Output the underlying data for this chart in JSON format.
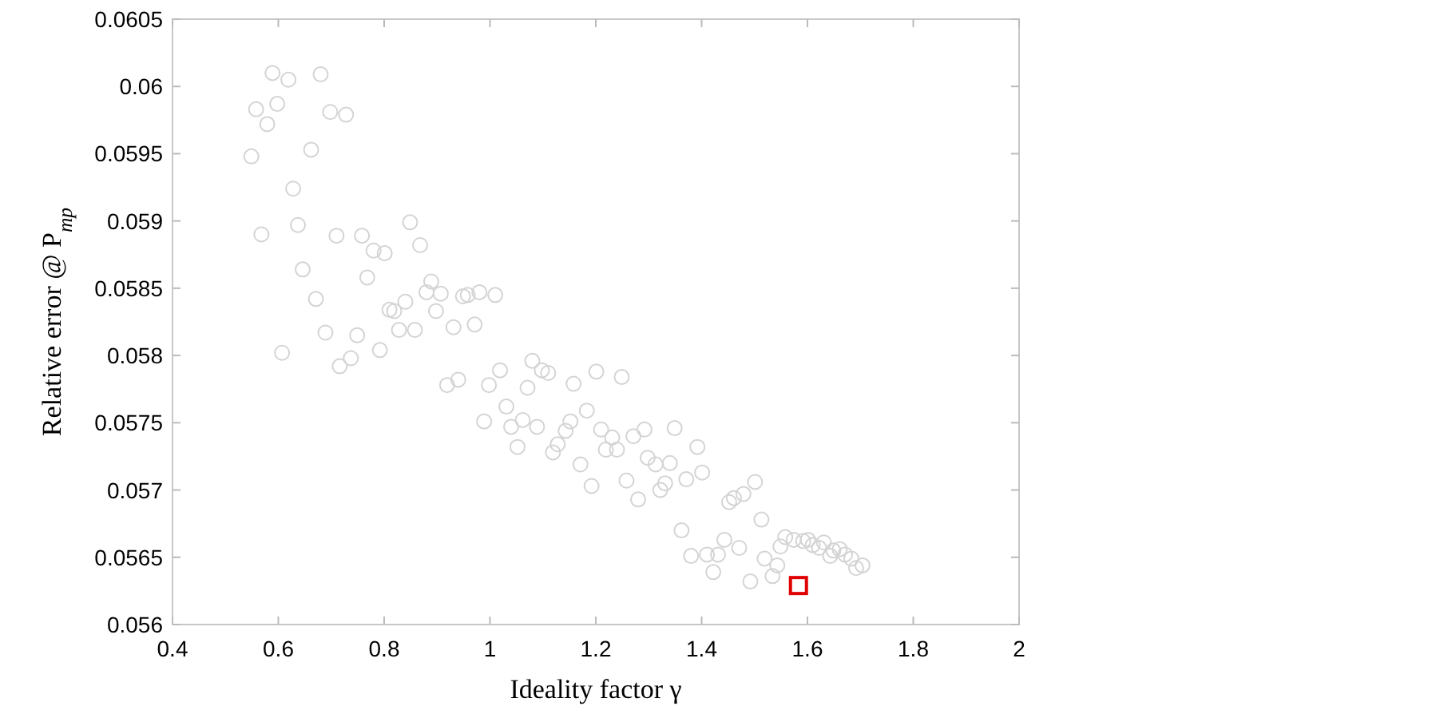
{
  "chart_data": {
    "type": "scatter",
    "xlabel": "Ideality factor γ",
    "ylabel": "Relative error @ P$_{mp}$",
    "xlim": [
      0.4,
      2
    ],
    "xticks": [
      0.4,
      0.6,
      0.8,
      1,
      1.2,
      1.4,
      1.6,
      1.8,
      2
    ],
    "ylim": [
      0.056,
      0.0605
    ],
    "yticks": [
      0.056,
      0.0565,
      0.057,
      0.0575,
      0.058,
      0.0585,
      0.059,
      0.0595,
      0.06,
      0.0605
    ],
    "grid": false,
    "series": [
      {
        "color": "#d4d4d4",
        "marker": "circle",
        "x": [
          0.549,
          0.558,
          0.579,
          0.589,
          0.598,
          0.619,
          0.68,
          0.698,
          0.728,
          0.662,
          0.628,
          0.568,
          0.637,
          0.71,
          0.758,
          0.78,
          0.801,
          0.849,
          0.868,
          0.646,
          0.768,
          0.671,
          0.889,
          0.88,
          0.907,
          0.949,
          0.958,
          0.98,
          1.01,
          0.81,
          0.819,
          0.84,
          0.898,
          0.689,
          0.749,
          0.828,
          0.858,
          0.931,
          0.971,
          0.607,
          0.792,
          0.737,
          0.716,
          1.08,
          1.019,
          1.098,
          1.11,
          0.919,
          0.94,
          0.998,
          1.071,
          1.158,
          1.201,
          1.249,
          1.031,
          1.183,
          0.989,
          1.04,
          1.062,
          1.089,
          1.152,
          1.143,
          1.128,
          1.119,
          1.052,
          1.21,
          1.231,
          1.271,
          1.292,
          1.349,
          1.219,
          1.24,
          1.298,
          1.313,
          1.34,
          1.392,
          1.171,
          1.192,
          1.258,
          1.28,
          1.322,
          1.331,
          1.371,
          1.401,
          1.362,
          1.38,
          1.41,
          1.431,
          1.422,
          1.443,
          1.471,
          1.492,
          1.452,
          1.461,
          1.479,
          1.501,
          1.513,
          1.519,
          1.543,
          1.534,
          1.549,
          1.558,
          1.574,
          1.592,
          1.601,
          1.61,
          1.622,
          1.631,
          1.643,
          1.649,
          1.661,
          1.671,
          1.683,
          1.692,
          1.704
        ],
        "values": [
          0.05948,
          0.05983,
          0.05972,
          0.0601,
          0.05987,
          0.06005,
          0.06009,
          0.05981,
          0.05979,
          0.05953,
          0.05924,
          0.0589,
          0.05897,
          0.05889,
          0.05889,
          0.05878,
          0.05876,
          0.05899,
          0.05882,
          0.05864,
          0.05858,
          0.05842,
          0.05855,
          0.05847,
          0.05846,
          0.05844,
          0.05845,
          0.05847,
          0.05845,
          0.05834,
          0.05833,
          0.0584,
          0.05833,
          0.05817,
          0.05815,
          0.05819,
          0.05819,
          0.05821,
          0.05823,
          0.05802,
          0.05804,
          0.05798,
          0.05792,
          0.05796,
          0.05789,
          0.05789,
          0.05787,
          0.05778,
          0.05782,
          0.05778,
          0.05776,
          0.05779,
          0.05788,
          0.05784,
          0.05762,
          0.05759,
          0.05751,
          0.05747,
          0.05752,
          0.05747,
          0.05751,
          0.05744,
          0.05734,
          0.05728,
          0.05732,
          0.05745,
          0.05739,
          0.0574,
          0.05745,
          0.05746,
          0.0573,
          0.0573,
          0.05724,
          0.05719,
          0.0572,
          0.05732,
          0.05719,
          0.05703,
          0.05707,
          0.05693,
          0.057,
          0.05705,
          0.05708,
          0.05713,
          0.0567,
          0.05651,
          0.05652,
          0.05652,
          0.05639,
          0.05663,
          0.05657,
          0.05632,
          0.05691,
          0.05694,
          0.05697,
          0.05706,
          0.05678,
          0.05649,
          0.05644,
          0.05636,
          0.05658,
          0.05665,
          0.05663,
          0.05662,
          0.05663,
          0.05659,
          0.05657,
          0.05661,
          0.05651,
          0.05655,
          0.05656,
          0.05652,
          0.05649,
          0.05642,
          0.05644
        ]
      },
      {
        "color": "#e00000",
        "marker": "square",
        "x": [
          1.583
        ],
        "values": [
          0.05629
        ]
      }
    ]
  }
}
